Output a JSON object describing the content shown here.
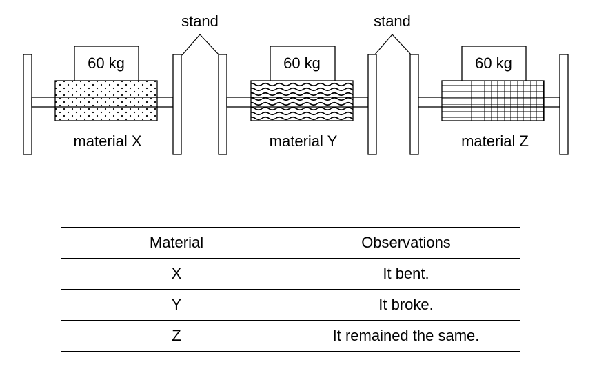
{
  "diagram": {
    "stand_labels": [
      "stand",
      "stand"
    ],
    "setups": [
      {
        "weight": "60 kg",
        "material_label": "material X",
        "pattern": "dots"
      },
      {
        "weight": "60 kg",
        "material_label": "material Y",
        "pattern": "waves"
      },
      {
        "weight": "60 kg",
        "material_label": "material Z",
        "pattern": "grid"
      }
    ]
  },
  "table": {
    "headers": [
      "Material",
      "Observations"
    ],
    "rows": [
      [
        "X",
        "It bent."
      ],
      [
        "Y",
        "It broke."
      ],
      [
        "Z",
        "It remained the same."
      ]
    ]
  }
}
